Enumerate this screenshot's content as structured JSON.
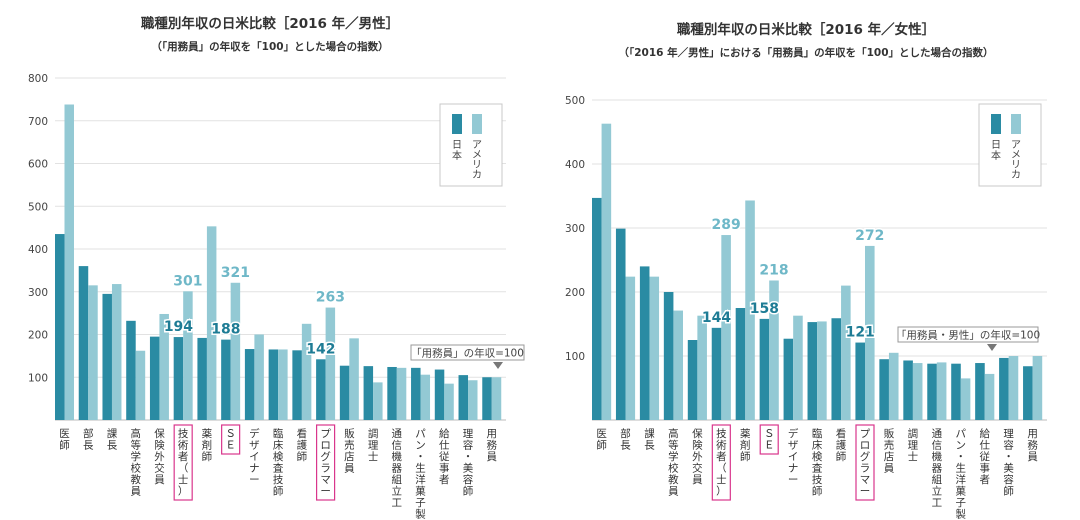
{
  "colors": {
    "japan": "#2a8ba3",
    "usa": "#93c9d4",
    "highlight": "#d9368c",
    "label_jp": "#1e7c95",
    "label_us": "#6fb8c8"
  },
  "legend": {
    "japan": "日本",
    "usa": "アメリカ"
  },
  "chart_data": [
    {
      "type": "bar",
      "title": "職種別年収の日米比較［2016 年／男性］",
      "subtitle": "（「用務員」の年収を「100」とした場合の指数）",
      "ylim": [
        0,
        800
      ],
      "yticks": [
        "100",
        "200",
        "300",
        "400",
        "500",
        "600",
        "700",
        "800"
      ],
      "categories": [
        "医師",
        "部長",
        "課長",
        "高等学校教員",
        "保険外交員",
        "技術者（士）",
        "薬剤師",
        "ＳＥ",
        "デザイナー",
        "臨床検査技師",
        "看護師",
        "プログラマー",
        "販売店員",
        "調理士",
        "通信機器組立工",
        "パン・生洋菓子製造工",
        "給仕従事者",
        "理容・美容師",
        "用務員"
      ],
      "series": [
        {
          "name": "日本",
          "values": [
            435,
            360,
            295,
            232,
            195,
            194,
            192,
            188,
            166,
            165,
            163,
            142,
            127,
            126,
            124,
            122,
            118,
            105,
            100
          ]
        },
        {
          "name": "アメリカ",
          "values": [
            738,
            315,
            318,
            162,
            248,
            301,
            453,
            321,
            200,
            165,
            225,
            263,
            191,
            88,
            122,
            106,
            85,
            93,
            100
          ]
        }
      ],
      "data_labels": [
        {
          "index": 5,
          "series": 0,
          "text": "194"
        },
        {
          "index": 5,
          "series": 1,
          "text": "301"
        },
        {
          "index": 7,
          "series": 0,
          "text": "188"
        },
        {
          "index": 7,
          "series": 1,
          "text": "321"
        },
        {
          "index": 11,
          "series": 0,
          "text": "142"
        },
        {
          "index": 11,
          "series": 1,
          "text": "263"
        }
      ],
      "highlight": [
        5,
        7,
        11
      ],
      "annotation": "「用務員」の年収=100"
    },
    {
      "type": "bar",
      "title": "職種別年収の日米比較［2016 年／女性］",
      "subtitle": "（「2016 年／男性」における「用務員」の年収を「100」とした場合の指数）",
      "ylim": [
        0,
        500
      ],
      "yticks": [
        "100",
        "200",
        "300",
        "400",
        "500"
      ],
      "categories": [
        "医師",
        "部長",
        "課長",
        "高等学校教員",
        "保険外交員",
        "技術者（士）",
        "薬剤師",
        "ＳＥ",
        "デザイナー",
        "臨床検査技師",
        "看護師",
        "プログラマー",
        "販売店員",
        "調理士",
        "通信機器組立工",
        "パン・生洋菓子製造工",
        "給仕従事者",
        "理容・美容師",
        "用務員"
      ],
      "series": [
        {
          "name": "日本",
          "values": [
            347,
            299,
            240,
            200,
            125,
            144,
            175,
            158,
            127,
            153,
            159,
            121,
            95,
            93,
            88,
            88,
            89,
            97,
            84
          ]
        },
        {
          "name": "アメリカ",
          "values": [
            463,
            224,
            224,
            171,
            163,
            289,
            343,
            218,
            163,
            154,
            210,
            272,
            105,
            89,
            90,
            65,
            72,
            100,
            100
          ]
        }
      ],
      "data_labels": [
        {
          "index": 5,
          "series": 0,
          "text": "144"
        },
        {
          "index": 5,
          "series": 1,
          "text": "289"
        },
        {
          "index": 7,
          "series": 0,
          "text": "158"
        },
        {
          "index": 7,
          "series": 1,
          "text": "218"
        },
        {
          "index": 11,
          "series": 0,
          "text": "121"
        },
        {
          "index": 11,
          "series": 1,
          "text": "272"
        }
      ],
      "highlight": [
        5,
        7,
        11
      ],
      "annotation": "「用務員・男性」の年収=100"
    }
  ]
}
